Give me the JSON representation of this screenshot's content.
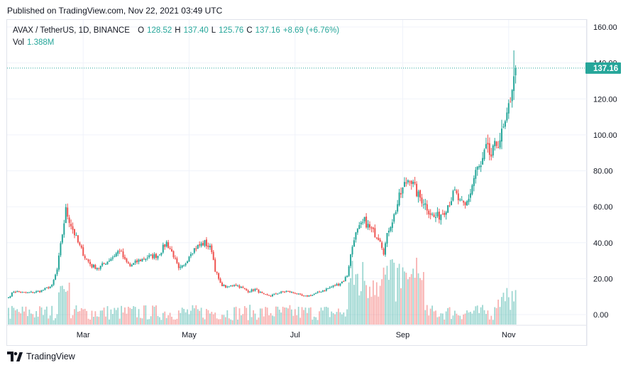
{
  "header": {
    "published": "Published on TradingView.com, Nov 22, 2021 03:49 UTC"
  },
  "legend": {
    "symbol": "AVAX / TetherUS, 1D, BINANCE",
    "open_label": "O",
    "open": "128.52",
    "high_label": "H",
    "high": "137.40",
    "low_label": "L",
    "low": "125.76",
    "close_label": "C",
    "close": "137.16",
    "change": "+8.69 (+6.76%)",
    "vol_label": "Vol",
    "vol_value": "1.388M"
  },
  "price_tag": "137.16",
  "footer": {
    "brand": "TradingView"
  },
  "colors": {
    "up": "#26a69a",
    "down": "#ef5350",
    "grid": "#f0f3fa",
    "axis_text": "#131722",
    "border": "#e0e3eb"
  },
  "chart_data": {
    "type": "candlestick",
    "symbol": "AVAX / TetherUS",
    "interval": "1D",
    "exchange": "BINANCE",
    "y_ticks": [
      0,
      20,
      40,
      60,
      80,
      100,
      120,
      140,
      160
    ],
    "y_tick_labels": [
      "0.00",
      "20.00",
      "40.00",
      "60.00",
      "80.00",
      "100.00",
      "120.00",
      "140.00",
      "160.00"
    ],
    "ylim": [
      -5,
      162
    ],
    "x_labels": [
      {
        "label": "Mar",
        "day": 43
      },
      {
        "label": "May",
        "day": 104
      },
      {
        "label": "Jul",
        "day": 165
      },
      {
        "label": "Sep",
        "day": 227
      },
      {
        "label": "Nov",
        "day": 288
      }
    ],
    "total_days": 322,
    "last_price": 137.16,
    "volume_max_label": "1.388M",
    "anchors": [
      [
        0,
        9.5
      ],
      [
        3,
        13
      ],
      [
        10,
        12
      ],
      [
        18,
        13
      ],
      [
        25,
        16
      ],
      [
        28,
        25
      ],
      [
        31,
        45
      ],
      [
        33,
        58
      ],
      [
        36,
        50
      ],
      [
        40,
        40
      ],
      [
        44,
        32
      ],
      [
        48,
        27
      ],
      [
        52,
        26
      ],
      [
        56,
        29
      ],
      [
        60,
        32
      ],
      [
        64,
        36
      ],
      [
        67,
        30
      ],
      [
        70,
        27
      ],
      [
        75,
        30
      ],
      [
        80,
        32
      ],
      [
        86,
        33
      ],
      [
        91,
        40
      ],
      [
        95,
        33
      ],
      [
        98,
        25
      ],
      [
        101,
        27
      ],
      [
        105,
        35
      ],
      [
        109,
        38
      ],
      [
        113,
        40
      ],
      [
        117,
        36
      ],
      [
        119,
        25
      ],
      [
        122,
        17
      ],
      [
        126,
        15
      ],
      [
        130,
        17
      ],
      [
        134,
        15
      ],
      [
        138,
        13
      ],
      [
        142,
        14
      ],
      [
        147,
        11
      ],
      [
        151,
        10.5
      ],
      [
        155,
        12
      ],
      [
        160,
        13
      ],
      [
        165,
        12
      ],
      [
        170,
        10
      ],
      [
        175,
        11
      ],
      [
        180,
        13
      ],
      [
        185,
        15
      ],
      [
        190,
        17
      ],
      [
        193,
        19
      ],
      [
        195,
        22
      ],
      [
        197,
        33
      ],
      [
        199,
        43
      ],
      [
        202,
        48
      ],
      [
        205,
        52
      ],
      [
        208,
        48
      ],
      [
        211,
        45
      ],
      [
        214,
        42
      ],
      [
        216,
        35
      ],
      [
        219,
        48
      ],
      [
        222,
        55
      ],
      [
        225,
        65
      ],
      [
        228,
        72
      ],
      [
        231,
        77
      ],
      [
        233,
        72
      ],
      [
        236,
        66
      ],
      [
        239,
        63
      ],
      [
        242,
        58
      ],
      [
        245,
        54
      ],
      [
        248,
        55
      ],
      [
        251,
        58
      ],
      [
        254,
        63
      ],
      [
        257,
        68
      ],
      [
        260,
        62
      ],
      [
        263,
        60
      ],
      [
        266,
        68
      ],
      [
        269,
        80
      ],
      [
        272,
        82
      ],
      [
        275,
        92
      ],
      [
        278,
        88
      ],
      [
        281,
        95
      ],
      [
        284,
        100
      ],
      [
        287,
        108
      ],
      [
        290,
        128
      ],
      [
        292,
        137.16
      ]
    ],
    "all_time_high": 147,
    "ath_day": 291
  }
}
